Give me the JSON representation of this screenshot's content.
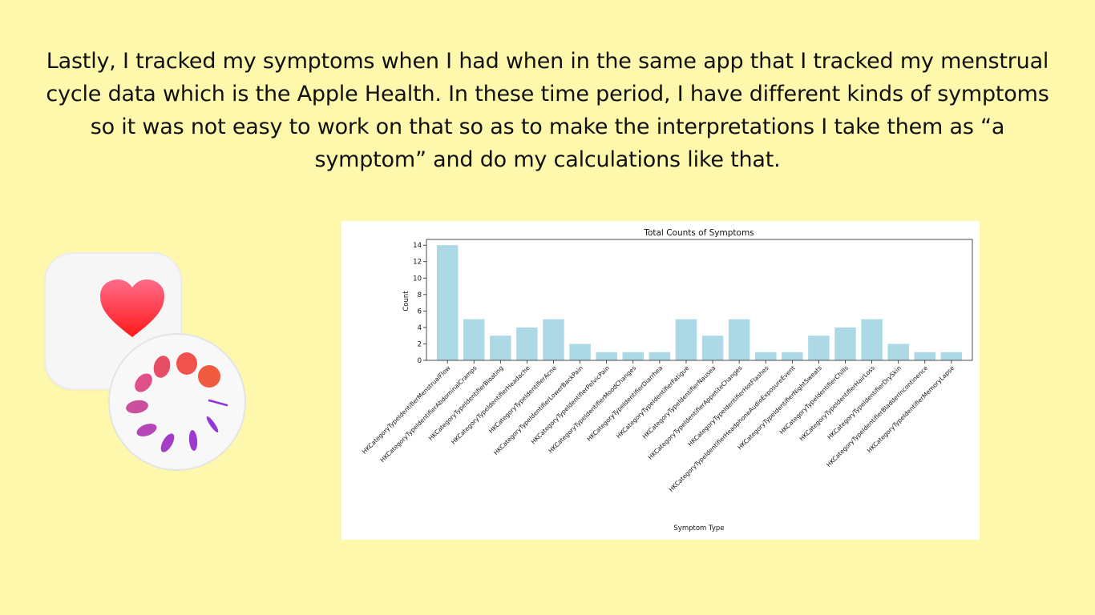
{
  "intro_text": "Lastly, I tracked my symptoms when I had when in the same app that I tracked my menstrual cycle data which is the Apple Health. In these time period, I have different kinds of symptoms so it was not easy to work on that so as to make the interpretations I take them as “a symptom” and do my calculations like that.",
  "icons": {
    "health": "heart-icon",
    "cycle": "cycle-tracking-icon"
  },
  "colors": {
    "background": "#fef8ad",
    "bar": "#add8e6",
    "heart": "#ff2d55"
  },
  "chart_data": {
    "type": "bar",
    "title": "Total Counts of Symptoms",
    "xlabel": "Symptom Type",
    "ylabel": "Count",
    "ylim": [
      0,
      14.7
    ],
    "yticks": [
      0,
      2,
      4,
      6,
      8,
      10,
      12,
      14
    ],
    "grid": false,
    "categories": [
      "HKCategoryTypeIdentifierMenstrualFlow",
      "HKCategoryTypeIdentifierAbdominalCramps",
      "HKCategoryTypeIdentifierBloating",
      "HKCategoryTypeIdentifierHeadache",
      "HKCategoryTypeIdentifierAcne",
      "HKCategoryTypeIdentifierLowerBackPain",
      "HKCategoryTypeIdentifierPelvicPain",
      "HKCategoryTypeIdentifierMoodChanges",
      "HKCategoryTypeIdentifierDiarrhea",
      "HKCategoryTypeIdentifierFatigue",
      "HKCategoryTypeIdentifierNausea",
      "HKCategoryTypeIdentifierAppetiteChanges",
      "HKCategoryTypeIdentifierHotFlashes",
      "HKCategoryTypeIdentifierHeadphoneAudioExposureEvent",
      "HKCategoryTypeIdentifierNightSweats",
      "HKCategoryTypeIdentifierChills",
      "HKCategoryTypeIdentifierHairLoss",
      "HKCategoryTypeIdentifierDrySkin",
      "HKCategoryTypeIdentifierBladderIncontinence",
      "HKCategoryTypeIdentifierMemoryLapse"
    ],
    "values": [
      14,
      5,
      3,
      4,
      5,
      2,
      1,
      1,
      1,
      5,
      3,
      5,
      1,
      1,
      3,
      4,
      5,
      2,
      1,
      1
    ]
  }
}
